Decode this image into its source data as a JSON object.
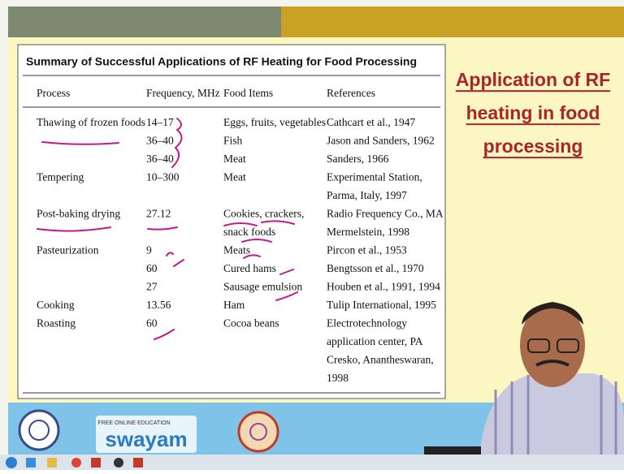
{
  "slide": {
    "heading": [
      "Application of RF",
      "heating in food",
      "processing"
    ],
    "table": {
      "title": "Summary of Successful Applications of RF Heating for Food Processing",
      "header": {
        "process": "Process",
        "frequency": "Frequency, MHz",
        "food": "Food Items",
        "reference": "References"
      },
      "lines": [
        {
          "process": "Thawing of frozen foods",
          "frequency": "14–17",
          "food": "Eggs, fruits, vegetables",
          "reference": "Cathcart et al., 1947"
        },
        {
          "frequency": "36–40",
          "food": "Fish",
          "reference": "Jason and Sanders, 1962"
        },
        {
          "frequency": "36–40",
          "food": "Meat",
          "reference": "Sanders, 1966"
        },
        {
          "process": "Tempering",
          "frequency": "10–300",
          "food": "Meat",
          "reference": "Experimental Station,"
        },
        {
          "reference": "Parma, Italy, 1997"
        },
        {
          "process": "Post-baking drying",
          "frequency": "27.12",
          "food": "Cookies, crackers,",
          "reference": "Radio Frequency Co., MA"
        },
        {
          "food": "snack foods",
          "reference": "Mermelstein, 1998"
        },
        {
          "process": "Pasteurization",
          "frequency": "9",
          "food": "Meats",
          "reference": "Pircon et al., 1953"
        },
        {
          "frequency": "60",
          "food": "Cured hams",
          "reference": "Bengtsson et al., 1970"
        },
        {
          "frequency": "27",
          "food": "Sausage emulsion",
          "reference": "Houben et al., 1991, 1994"
        },
        {
          "process": "Cooking",
          "frequency": "13.56",
          "food": "Ham",
          "reference": "Tulip International, 1995"
        },
        {
          "process": "Roasting",
          "frequency": "60",
          "food": "Cocoa beans",
          "reference": "Electrotechnology"
        },
        {
          "reference": "application center, PA"
        },
        {
          "reference": "Cresko, Anantheswaran,"
        },
        {
          "reference": "1998"
        }
      ]
    }
  },
  "footer": {
    "tagline": "FREE ONLINE EDUCATION",
    "brand": "swayam"
  }
}
